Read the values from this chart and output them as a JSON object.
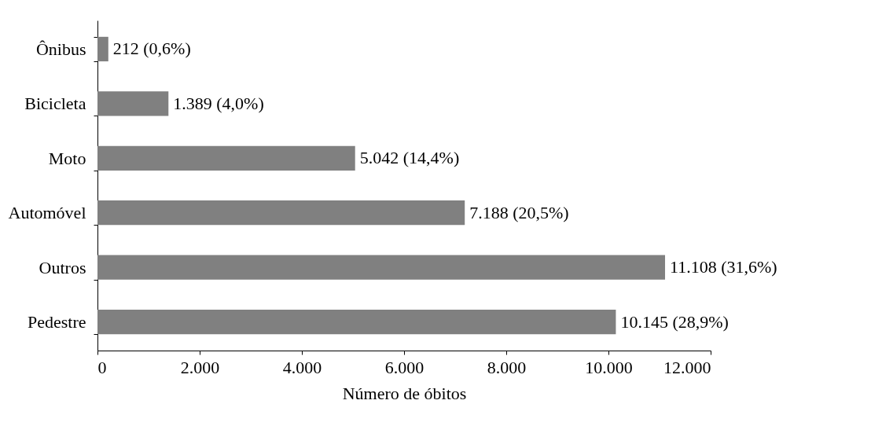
{
  "chart_data": {
    "type": "bar",
    "orientation": "horizontal",
    "xlabel": "Número de óbitos",
    "categories": [
      "Ônibus",
      "Bicicleta",
      "Moto",
      "Automóvel",
      "Outros",
      "Pedestre"
    ],
    "values": [
      212,
      1389,
      5042,
      7188,
      11108,
      10145
    ],
    "value_labels": [
      "212  (0,6%)",
      "1.389  (4,0%)",
      "5.042  (14,4%)",
      "7.188  (20,5%)",
      "11.108  (31,6%)",
      "10.145  (28,9%)"
    ],
    "color": "#808080",
    "xlim": [
      0,
      12000
    ],
    "xticks": [
      0,
      {
        "value": 2000,
        "label": "2.000"
      },
      {
        "value": 4000,
        "label": "4.000"
      },
      {
        "value": 6000,
        "label": "6.000"
      },
      {
        "value": 8000,
        "label": "8.000"
      },
      {
        "value": 10000,
        "label": "10.000"
      },
      {
        "value": 12000,
        "label": "12.000"
      }
    ],
    "grid": false
  }
}
